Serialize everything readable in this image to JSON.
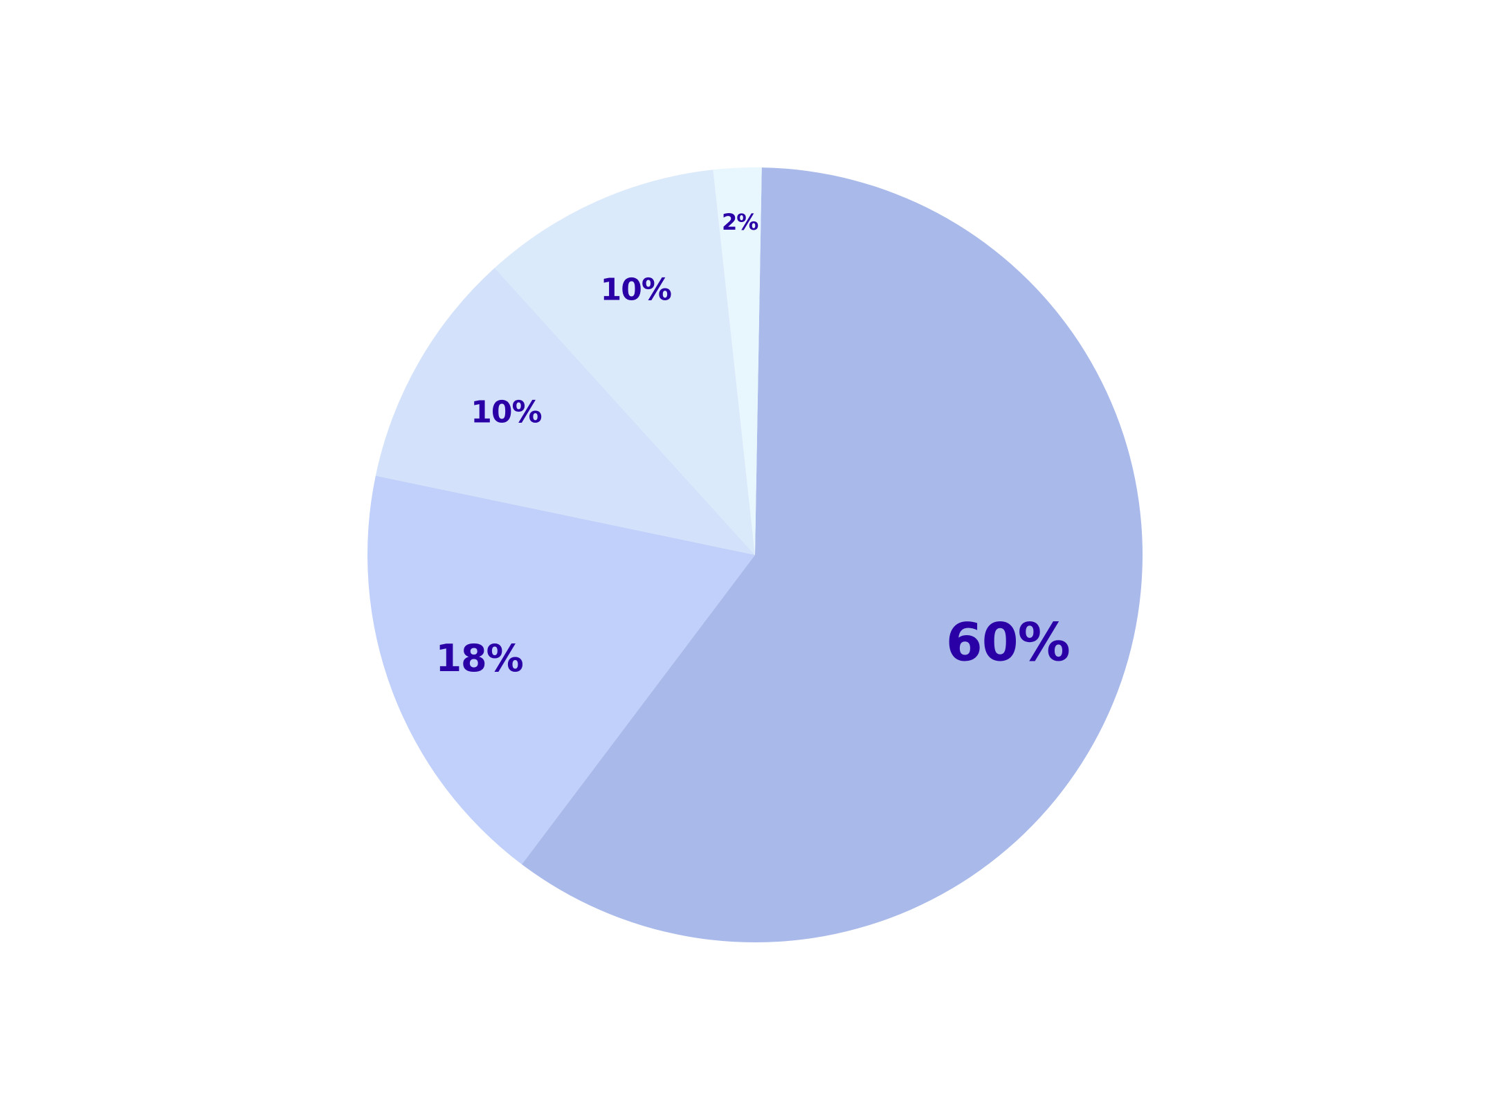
{
  "chart_data": {
    "type": "pie",
    "title": "",
    "start_angle_deg": 1,
    "direction": "clockwise",
    "label_color": "#2a00a6",
    "slices": [
      {
        "label": "60%",
        "value": 60,
        "color": "#a8b9ea"
      },
      {
        "label": "18%",
        "value": 18,
        "color": "#c0d0fa"
      },
      {
        "label": "10%",
        "value": 10,
        "color": "#d3e2fa"
      },
      {
        "label": "10%",
        "value": 10,
        "color": "#dbeafb"
      },
      {
        "label": "2%",
        "value": 2,
        "color": "#e8f6fe"
      }
    ]
  }
}
